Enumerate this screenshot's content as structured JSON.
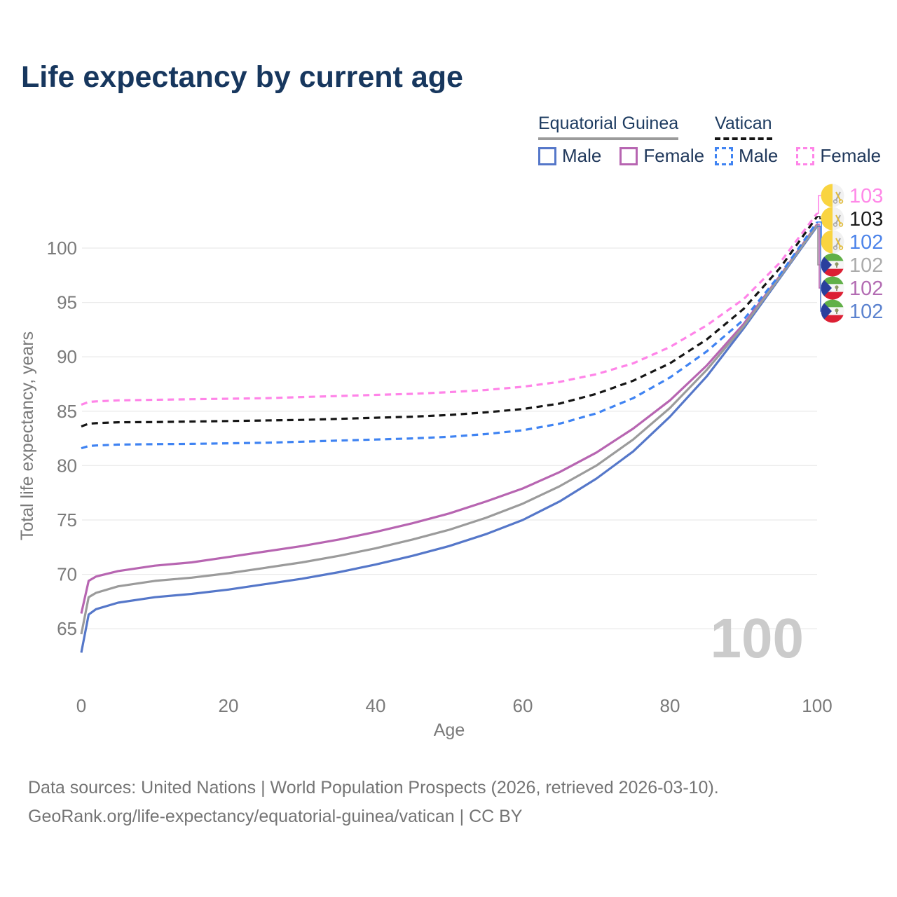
{
  "title": "Life expectancy by current age",
  "watermark": "100",
  "legend": {
    "groups": [
      {
        "name": "Equatorial Guinea",
        "style": "solid",
        "items": [
          {
            "label": "Male"
          },
          {
            "label": "Female"
          }
        ]
      },
      {
        "name": "Vatican",
        "style": "dashed",
        "items": [
          {
            "label": "Male"
          },
          {
            "label": "Female"
          }
        ]
      }
    ]
  },
  "colors": {
    "title_text": "#17375e",
    "legend_text": "#21395c",
    "tick_text": "#7a7a7a",
    "grid": "#ebebeb",
    "watermark": "#cbcbcb",
    "footer_text": "#747474",
    "eg_male": "#5577c9",
    "eg_female": "#b765b1",
    "eg_total": "#9b9b9b",
    "va_male": "#3f83f2",
    "va_female": "#ff84e8",
    "va_total": "#151515"
  },
  "chart_data": {
    "type": "line",
    "title": "Life expectancy by current age",
    "xlabel": "Age",
    "ylabel": "Total life expectancy, years",
    "xlim": [
      0,
      100
    ],
    "ylim": [
      62,
      104
    ],
    "xticks": [
      0,
      20,
      40,
      60,
      80,
      100
    ],
    "yticks": [
      65,
      70,
      75,
      80,
      85,
      90,
      95,
      100
    ],
    "grid": "horizontal",
    "legend_position": "top-right",
    "x": [
      0,
      1,
      2,
      5,
      10,
      15,
      20,
      25,
      30,
      35,
      40,
      45,
      50,
      55,
      60,
      65,
      70,
      75,
      80,
      85,
      90,
      95,
      100
    ],
    "series": [
      {
        "id": "vatican-female",
        "name": "Vatican Female",
        "country": "Vatican",
        "sex": "female",
        "color": "#ff84e8",
        "label_color": "#ff89e8",
        "dash": true,
        "flag": "vatican",
        "end_label": "103",
        "values": [
          85.6,
          85.85,
          85.9,
          86.0,
          86.05,
          86.1,
          86.15,
          86.2,
          86.3,
          86.4,
          86.5,
          86.6,
          86.75,
          86.95,
          87.25,
          87.7,
          88.4,
          89.4,
          90.9,
          92.9,
          95.3,
          98.7,
          103.2
        ]
      },
      {
        "id": "vatican-total",
        "name": "Vatican",
        "country": "Vatican",
        "sex": "both",
        "color": "#151515",
        "label_color": "#1a1a1a",
        "dash": true,
        "flag": "vatican",
        "end_label": "103",
        "values": [
          83.6,
          83.85,
          83.9,
          83.98,
          84.0,
          84.05,
          84.1,
          84.15,
          84.2,
          84.3,
          84.4,
          84.5,
          84.65,
          84.9,
          85.2,
          85.7,
          86.6,
          87.8,
          89.4,
          91.6,
          94.4,
          98.2,
          102.9
        ]
      },
      {
        "id": "vatican-male",
        "name": "Vatican Male",
        "country": "Vatican",
        "sex": "male",
        "color": "#3f83f2",
        "label_color": "#4d84ea",
        "dash": true,
        "flag": "vatican",
        "end_label": "102",
        "values": [
          81.6,
          81.8,
          81.85,
          81.93,
          81.97,
          82.0,
          82.05,
          82.1,
          82.2,
          82.3,
          82.4,
          82.5,
          82.65,
          82.9,
          83.25,
          83.85,
          84.8,
          86.2,
          88.1,
          90.5,
          93.4,
          97.6,
          102.4
        ]
      },
      {
        "id": "equatorial-guinea-total",
        "name": "Equatorial Guinea",
        "country": "Equatorial Guinea",
        "sex": "both",
        "color": "#9b9b9b",
        "label_color": "#ababab",
        "dash": false,
        "flag": "equatorial-guinea",
        "end_label": "102",
        "values": [
          64.5,
          67.9,
          68.3,
          68.9,
          69.4,
          69.7,
          70.1,
          70.6,
          71.1,
          71.7,
          72.4,
          73.2,
          74.1,
          75.2,
          76.5,
          78.1,
          80.0,
          82.4,
          85.3,
          88.8,
          92.8,
          97.4,
          102.1
        ]
      },
      {
        "id": "equatorial-guinea-female",
        "name": "Equatorial Guinea Female",
        "country": "Equatorial Guinea",
        "sex": "female",
        "color": "#b765b1",
        "label_color": "#b36cb3",
        "dash": false,
        "flag": "equatorial-guinea",
        "end_label": "102",
        "values": [
          66.4,
          69.4,
          69.8,
          70.3,
          70.8,
          71.1,
          71.6,
          72.1,
          72.6,
          73.2,
          73.9,
          74.7,
          75.6,
          76.7,
          77.9,
          79.4,
          81.2,
          83.4,
          86.0,
          89.2,
          93.0,
          97.5,
          102.2
        ]
      },
      {
        "id": "equatorial-guinea-male",
        "name": "Equatorial Guinea Male",
        "country": "Equatorial Guinea",
        "sex": "male",
        "color": "#5577c9",
        "label_color": "#5b82cf",
        "dash": false,
        "flag": "equatorial-guinea",
        "end_label": "102",
        "values": [
          62.8,
          66.3,
          66.8,
          67.4,
          67.9,
          68.2,
          68.6,
          69.1,
          69.6,
          70.2,
          70.9,
          71.7,
          72.6,
          73.7,
          75.0,
          76.7,
          78.8,
          81.3,
          84.5,
          88.2,
          92.6,
          97.3,
          102.0
        ]
      }
    ]
  },
  "footer": {
    "line1": "Data sources: United Nations | World Population Prospects (2026, retrieved 2026-03-10).",
    "line2": "GeoRank.org/life-expectancy/equatorial-guinea/vatican | CC BY"
  }
}
